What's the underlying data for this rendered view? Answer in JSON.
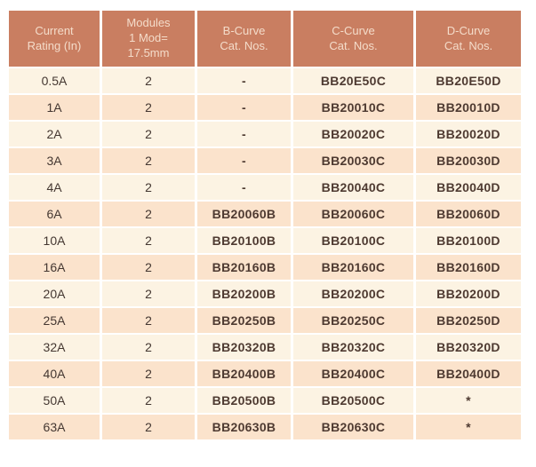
{
  "colors": {
    "header-bg": "#C97E61",
    "header-text": "#F4DCCA",
    "row-light": "#FCF3E3",
    "row-dark": "#FBE3CC",
    "body-text": "#443731",
    "code-text": "#4E3A31"
  },
  "table": {
    "headers": [
      "Current\nRating (In)",
      "Modules\n1 Mod=\n17.5mm",
      "B-Curve\nCat. Nos.",
      "C-Curve\nCat. Nos.",
      "D-Curve\nCat. Nos."
    ],
    "rows": [
      [
        "0.5A",
        "2",
        "-",
        "BB20E50C",
        "BB20E50D"
      ],
      [
        "1A",
        "2",
        "-",
        "BB20010C",
        "BB20010D"
      ],
      [
        "2A",
        "2",
        "-",
        "BB20020C",
        "BB20020D"
      ],
      [
        "3A",
        "2",
        "-",
        "BB20030C",
        "BB20030D"
      ],
      [
        "4A",
        "2",
        "-",
        "BB20040C",
        "BB20040D"
      ],
      [
        "6A",
        "2",
        "BB20060B",
        "BB20060C",
        "BB20060D"
      ],
      [
        "10A",
        "2",
        "BB20100B",
        "BB20100C",
        "BB20100D"
      ],
      [
        "16A",
        "2",
        "BB20160B",
        "BB20160C",
        "BB20160D"
      ],
      [
        "20A",
        "2",
        "BB20200B",
        "BB20200C",
        "BB20200D"
      ],
      [
        "25A",
        "2",
        "BB20250B",
        "BB20250C",
        "BB20250D"
      ],
      [
        "32A",
        "2",
        "BB20320B",
        "BB20320C",
        "BB20320D"
      ],
      [
        "40A",
        "2",
        "BB20400B",
        "BB20400C",
        "BB20400D"
      ],
      [
        "50A",
        "2",
        "BB20500B",
        "BB20500C",
        "*"
      ],
      [
        "63A",
        "2",
        "BB20630B",
        "BB20630C",
        "*"
      ]
    ]
  }
}
